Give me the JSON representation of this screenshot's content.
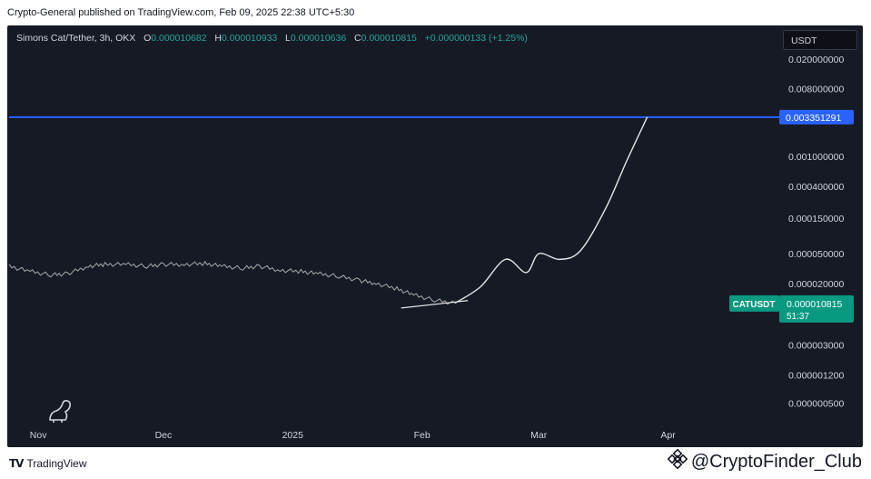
{
  "header": {
    "publish_line": "Crypto-General published on TradingView.com, Feb 09, 2025 22:38 UTC+5:30"
  },
  "legend": {
    "symbol": "Simons Cat/Tether, 3h, OKX",
    "o_label": "O",
    "o_value": "0.000010682",
    "h_label": "H",
    "h_value": "0.000010933",
    "l_label": "L",
    "l_value": "0.000010636",
    "c_label": "C",
    "c_value": "0.000010815",
    "change": "+0.000000133 (+1.25%)"
  },
  "currency_button": "USDT",
  "footer": {
    "brand": "TradingView",
    "watermark": "@CryptoFinder_Club"
  },
  "colors": {
    "background": "#161a25",
    "price_line": "#c9c9c9",
    "horizontal_line": "#2962ff",
    "current_price_tag": "#089981",
    "axis_text": "#d1d4dc"
  },
  "chart_data": {
    "type": "line",
    "scale": "log",
    "ylim": [
      3e-07,
      0.025
    ],
    "y_ticks": [
      "0.020000000",
      "0.008000000",
      "0.003351291",
      "0.001000000",
      "0.000400000",
      "0.000150000",
      "0.000050000",
      "0.000020000",
      "0.000010815",
      "0.000003000",
      "0.000001200",
      "0.000000500"
    ],
    "y_tick_values": [
      0.02,
      0.008,
      0.001,
      0.0004,
      0.00015,
      5e-05,
      2e-05,
      3e-06,
      1.2e-06,
      5e-07
    ],
    "x_ticks": [
      "Nov",
      "Dec",
      "2025",
      "Feb",
      "Mar",
      "Apr"
    ],
    "x_tick_dates": [
      "2024-11-01",
      "2024-12-01",
      "2025-01-01",
      "2025-02-01",
      "2025-03-01",
      "2025-04-01"
    ],
    "xlim": [
      "2024-10-25",
      "2025-04-27"
    ],
    "price_series": {
      "name": "",
      "x": [
        "2024-10-25",
        "2024-10-30",
        "2024-11-04",
        "2024-11-08",
        "2024-11-13",
        "2024-11-17",
        "2024-11-22",
        "2024-11-27",
        "2024-12-01",
        "2024-12-06",
        "2024-12-11",
        "2024-12-15",
        "2024-12-20",
        "2024-12-24",
        "2024-12-29",
        "2025-01-03",
        "2025-01-07",
        "2025-01-12",
        "2025-01-17",
        "2025-01-21",
        "2025-01-26",
        "2025-01-30",
        "2025-02-04",
        "2025-02-09"
      ],
      "y": [
        3.4e-05,
        2.9e-05,
        2.6e-05,
        2.7e-05,
        3.4e-05,
        3.6e-05,
        3.6e-05,
        3.4e-05,
        3.6e-05,
        3.6e-05,
        3.7e-05,
        3.4e-05,
        3.2e-05,
        3.4e-05,
        3e-05,
        2.9e-05,
        2.7e-05,
        2.5e-05,
        2.2e-05,
        2e-05,
        1.7e-05,
        1.4e-05,
        1.2e-05,
        1.0815e-05
      ]
    },
    "projection_series": {
      "name": "",
      "x": [
        "2025-02-09",
        "2025-02-15",
        "2025-02-21",
        "2025-02-26",
        "2025-03-01",
        "2025-03-06",
        "2025-03-11",
        "2025-03-17",
        "2025-03-22",
        "2025-03-27"
      ],
      "y": [
        1.1e-05,
        1.8e-05,
        4.2e-05,
        2.8e-05,
        5e-05,
        4.2e-05,
        5.5e-05,
        0.0002,
        0.00085,
        0.003351291
      ]
    },
    "support_line": {
      "x": [
        "2025-01-27",
        "2025-02-12"
      ],
      "y": [
        9.4e-06,
        1.18e-05
      ]
    },
    "horizontal_level": 0.003351291,
    "current_price": "0.000010815",
    "current_price_symbol": "CATUSDT",
    "countdown": "51:37"
  }
}
